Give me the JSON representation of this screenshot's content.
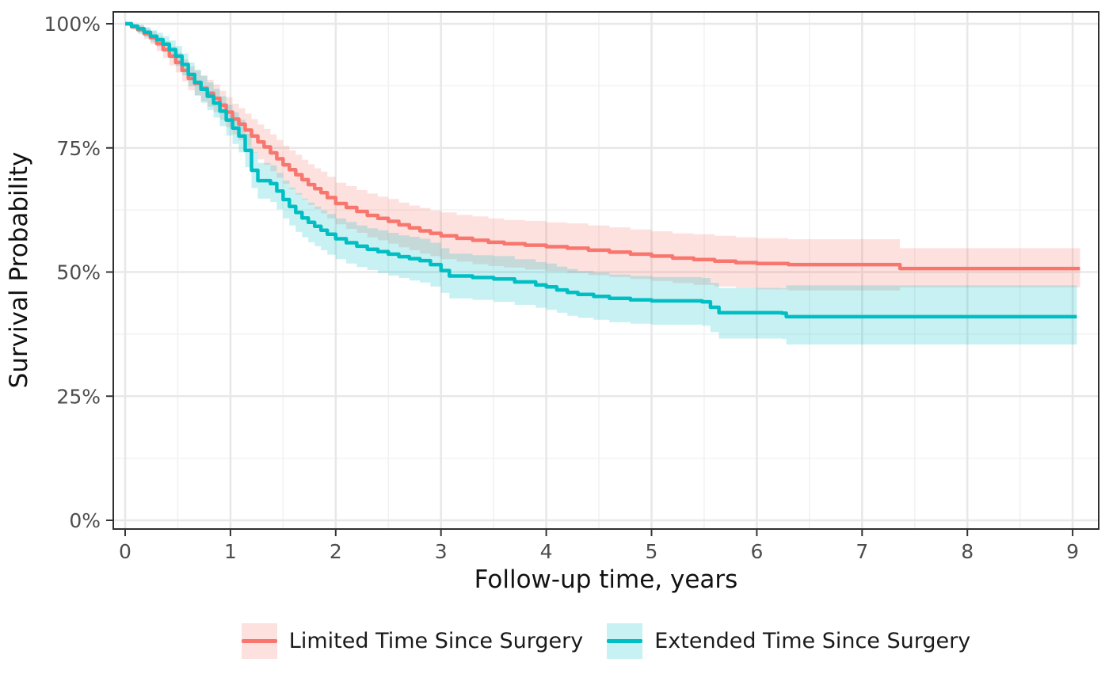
{
  "chart_data": {
    "type": "line",
    "subtype": "kaplan-meier-step-with-confidence-bands",
    "title": "",
    "xlabel": "Follow-up time, years",
    "ylabel": "Survival Probability",
    "x_ticks": [
      0,
      1,
      2,
      3,
      4,
      5,
      6,
      7,
      8,
      9
    ],
    "y_ticks": [
      {
        "value": 0,
        "label": "0%"
      },
      {
        "value": 25,
        "label": "25%"
      },
      {
        "value": 50,
        "label": "50%"
      },
      {
        "value": 75,
        "label": "75%"
      },
      {
        "value": 100,
        "label": "100%"
      }
    ],
    "xlim": [
      -0.11,
      9.25
    ],
    "ylim": [
      -1.8,
      102.5
    ],
    "grid": {
      "major": true,
      "minor": true,
      "minor_x_step": 0.5,
      "minor_y_step": 12.5
    },
    "legend_position": "bottom",
    "series": [
      {
        "name": "Limited Time Since Surgery",
        "color": "#F8766D",
        "band_opacity": 0.22,
        "points_format": [
          "time_years",
          "survival_pct",
          "ci_lower_pct",
          "ci_upper_pct"
        ],
        "points": [
          [
            0.0,
            100.0,
            100.0,
            100.0
          ],
          [
            0.06,
            99.4,
            98.8,
            100.0
          ],
          [
            0.12,
            98.8,
            97.9,
            99.7
          ],
          [
            0.18,
            98.0,
            96.9,
            99.1
          ],
          [
            0.24,
            97.2,
            95.9,
            98.5
          ],
          [
            0.3,
            96.0,
            94.5,
            97.5
          ],
          [
            0.36,
            94.8,
            93.1,
            96.5
          ],
          [
            0.42,
            93.5,
            91.6,
            95.4
          ],
          [
            0.48,
            92.2,
            90.2,
            94.2
          ],
          [
            0.54,
            90.6,
            88.4,
            92.8
          ],
          [
            0.6,
            89.0,
            86.6,
            91.4
          ],
          [
            0.66,
            88.0,
            85.5,
            90.5
          ],
          [
            0.72,
            87.0,
            84.4,
            89.6
          ],
          [
            0.78,
            86.0,
            83.3,
            88.7
          ],
          [
            0.84,
            85.0,
            82.2,
            87.8
          ],
          [
            0.9,
            83.6,
            80.7,
            86.5
          ],
          [
            0.96,
            82.2,
            79.2,
            85.2
          ],
          [
            1.02,
            80.8,
            77.7,
            83.9
          ],
          [
            1.08,
            79.8,
            76.6,
            83.0
          ],
          [
            1.14,
            78.6,
            75.3,
            81.9
          ],
          [
            1.2,
            77.4,
            74.0,
            80.8
          ],
          [
            1.26,
            76.2,
            72.7,
            79.7
          ],
          [
            1.32,
            75.2,
            71.6,
            78.8
          ],
          [
            1.38,
            74.0,
            70.3,
            77.7
          ],
          [
            1.44,
            72.8,
            69.0,
            76.6
          ],
          [
            1.5,
            71.6,
            67.8,
            75.4
          ],
          [
            1.56,
            70.6,
            66.7,
            74.5
          ],
          [
            1.62,
            69.6,
            65.6,
            73.6
          ],
          [
            1.68,
            68.6,
            64.6,
            72.6
          ],
          [
            1.74,
            67.6,
            63.5,
            71.7
          ],
          [
            1.8,
            66.8,
            62.7,
            70.9
          ],
          [
            1.86,
            66.0,
            61.8,
            70.2
          ],
          [
            1.92,
            65.0,
            60.8,
            69.2
          ],
          [
            2.0,
            63.8,
            59.6,
            68.0
          ],
          [
            2.1,
            63.0,
            58.7,
            67.3
          ],
          [
            2.2,
            62.2,
            57.9,
            66.5
          ],
          [
            2.3,
            61.4,
            57.0,
            65.8
          ],
          [
            2.4,
            60.8,
            56.4,
            65.2
          ],
          [
            2.5,
            60.2,
            55.7,
            64.7
          ],
          [
            2.6,
            59.5,
            55.0,
            64.0
          ],
          [
            2.7,
            58.9,
            54.4,
            63.4
          ],
          [
            2.8,
            58.3,
            53.7,
            62.9
          ],
          [
            2.9,
            57.8,
            53.2,
            62.4
          ],
          [
            3.0,
            57.3,
            52.6,
            62.0
          ],
          [
            3.15,
            56.8,
            52.1,
            61.5
          ],
          [
            3.3,
            56.4,
            51.6,
            61.2
          ],
          [
            3.45,
            56.0,
            51.2,
            60.8
          ],
          [
            3.6,
            55.7,
            50.9,
            60.5
          ],
          [
            3.8,
            55.4,
            50.5,
            60.3
          ],
          [
            4.0,
            55.1,
            50.2,
            60.0
          ],
          [
            4.2,
            54.8,
            49.8,
            59.8
          ],
          [
            4.4,
            54.4,
            49.4,
            59.4
          ],
          [
            4.6,
            54.0,
            49.0,
            59.0
          ],
          [
            4.8,
            53.6,
            48.6,
            58.6
          ],
          [
            5.0,
            53.2,
            48.2,
            58.2
          ],
          [
            5.2,
            52.8,
            47.8,
            57.8
          ],
          [
            5.4,
            52.5,
            47.4,
            57.6
          ],
          [
            5.6,
            52.2,
            47.1,
            57.3
          ],
          [
            5.8,
            51.9,
            46.8,
            57.0
          ],
          [
            6.0,
            51.7,
            46.5,
            56.8
          ],
          [
            6.3,
            51.5,
            46.3,
            56.6
          ],
          [
            7.0,
            51.5,
            46.3,
            56.6
          ],
          [
            7.36,
            50.7,
            46.9,
            54.8
          ],
          [
            9.07,
            50.7,
            46.9,
            54.8
          ]
        ]
      },
      {
        "name": "Extended Time Since Surgery",
        "color": "#00BFC4",
        "band_opacity": 0.22,
        "points_format": [
          "time_years",
          "survival_pct",
          "ci_lower_pct",
          "ci_upper_pct"
        ],
        "points": [
          [
            0.0,
            100.0,
            100.0,
            100.0
          ],
          [
            0.06,
            99.5,
            99.0,
            100.0
          ],
          [
            0.12,
            99.0,
            98.2,
            99.8
          ],
          [
            0.18,
            98.3,
            97.3,
            99.3
          ],
          [
            0.24,
            97.5,
            96.3,
            98.7
          ],
          [
            0.3,
            96.8,
            95.4,
            98.2
          ],
          [
            0.36,
            95.9,
            94.3,
            97.5
          ],
          [
            0.42,
            94.8,
            93.0,
            96.6
          ],
          [
            0.48,
            93.5,
            91.5,
            95.5
          ],
          [
            0.54,
            91.8,
            89.6,
            94.0
          ],
          [
            0.6,
            89.8,
            87.4,
            92.2
          ],
          [
            0.66,
            88.2,
            85.6,
            90.8
          ],
          [
            0.72,
            86.8,
            84.1,
            89.5
          ],
          [
            0.78,
            85.4,
            82.6,
            88.2
          ],
          [
            0.84,
            84.0,
            81.1,
            86.9
          ],
          [
            0.9,
            82.4,
            79.4,
            85.4
          ],
          [
            0.96,
            80.6,
            77.5,
            83.7
          ],
          [
            1.02,
            79.0,
            75.8,
            82.2
          ],
          [
            1.08,
            77.4,
            74.1,
            80.7
          ],
          [
            1.14,
            74.5,
            71.1,
            77.9
          ],
          [
            1.2,
            70.5,
            66.9,
            74.1
          ],
          [
            1.26,
            68.4,
            64.8,
            72.0
          ],
          [
            1.38,
            67.8,
            64.1,
            71.5
          ],
          [
            1.44,
            66.3,
            62.6,
            70.0
          ],
          [
            1.5,
            64.6,
            60.8,
            68.4
          ],
          [
            1.56,
            63.2,
            59.4,
            67.0
          ],
          [
            1.62,
            62.0,
            58.1,
            65.9
          ],
          [
            1.68,
            60.9,
            57.0,
            64.8
          ],
          [
            1.74,
            60.0,
            56.0,
            64.0
          ],
          [
            1.8,
            59.2,
            55.2,
            63.2
          ],
          [
            1.86,
            58.4,
            54.4,
            62.4
          ],
          [
            1.92,
            57.6,
            53.5,
            61.7
          ],
          [
            2.0,
            56.7,
            52.6,
            60.8
          ],
          [
            2.1,
            55.9,
            51.7,
            60.1
          ],
          [
            2.2,
            55.2,
            51.0,
            59.4
          ],
          [
            2.3,
            54.6,
            50.4,
            58.8
          ],
          [
            2.4,
            54.1,
            49.8,
            58.4
          ],
          [
            2.5,
            53.6,
            49.3,
            57.9
          ],
          [
            2.6,
            53.1,
            48.8,
            57.4
          ],
          [
            2.7,
            52.7,
            48.3,
            57.1
          ],
          [
            2.8,
            52.3,
            47.9,
            56.7
          ],
          [
            2.9,
            51.5,
            47.1,
            55.9
          ],
          [
            3.0,
            50.3,
            45.8,
            54.8
          ],
          [
            3.08,
            49.2,
            44.7,
            53.7
          ],
          [
            3.3,
            48.9,
            44.4,
            53.4
          ],
          [
            3.5,
            48.6,
            44.0,
            53.2
          ],
          [
            3.7,
            48.0,
            43.4,
            52.6
          ],
          [
            3.9,
            47.4,
            42.8,
            52.0
          ],
          [
            4.0,
            47.0,
            42.4,
            51.7
          ],
          [
            4.1,
            46.4,
            41.8,
            51.1
          ],
          [
            4.2,
            45.9,
            41.2,
            50.6
          ],
          [
            4.3,
            45.5,
            40.8,
            50.2
          ],
          [
            4.45,
            45.1,
            40.4,
            49.9
          ],
          [
            4.6,
            44.7,
            39.9,
            49.5
          ],
          [
            4.8,
            44.4,
            39.6,
            49.2
          ],
          [
            5.0,
            44.2,
            39.4,
            49.0
          ],
          [
            5.48,
            44.0,
            39.2,
            48.8
          ],
          [
            5.56,
            42.9,
            37.9,
            47.8
          ],
          [
            5.64,
            41.8,
            36.6,
            46.8
          ],
          [
            6.24,
            41.7,
            36.5,
            46.7
          ],
          [
            6.28,
            41.0,
            35.4,
            47.3
          ],
          [
            9.04,
            41.0,
            35.4,
            47.3
          ]
        ]
      }
    ],
    "panel_style": {
      "background": "#ffffff",
      "border_color": "#2f2f2f",
      "major_grid_color": "#e8e8e8",
      "minor_grid_color": "#f2f2f2",
      "tick_color": "#333333",
      "tick_label_color": "#4d4d4d"
    }
  },
  "legend": {
    "items": [
      {
        "label": "Limited Time Since Surgery"
      },
      {
        "label": "Extended Time Since Surgery"
      }
    ]
  }
}
